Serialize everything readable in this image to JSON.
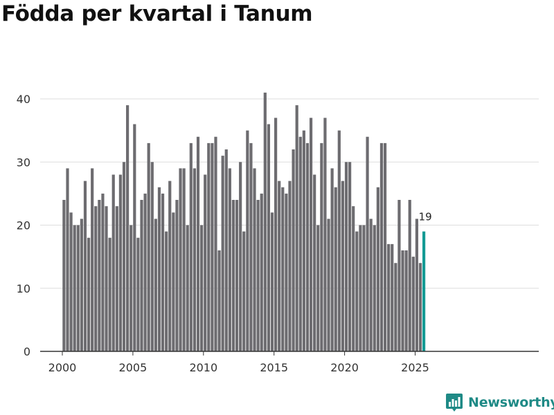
{
  "title": "Födda per kvartal i Tanum",
  "brand": {
    "name": "Newsworthy",
    "icon": "newsworthy-chart-logo-icon",
    "color": "#1f8a86"
  },
  "colors": {
    "bar": "#6d6c70",
    "highlight": "#139a94",
    "grid": "#dddddd",
    "axis": "#333333",
    "text": "#333333"
  },
  "chart_data": {
    "type": "bar",
    "title": "Födda per kvartal i Tanum",
    "xlabel": "",
    "ylabel": "",
    "ylim": [
      0,
      40
    ],
    "yticks": [
      0,
      10,
      20,
      30,
      40
    ],
    "xticks": [
      "2000",
      "2005",
      "2010",
      "2015",
      "2020",
      "2025"
    ],
    "grid": true,
    "legend": "none",
    "start_period": "2000 Q1",
    "end_period": "2025 Q3",
    "values": [
      24,
      29,
      22,
      20,
      20,
      21,
      27,
      18,
      29,
      23,
      24,
      25,
      23,
      18,
      28,
      23,
      28,
      30,
      39,
      20,
      36,
      18,
      24,
      25,
      33,
      30,
      21,
      26,
      25,
      19,
      27,
      22,
      24,
      29,
      29,
      20,
      33,
      29,
      34,
      20,
      28,
      33,
      33,
      34,
      16,
      31,
      32,
      29,
      24,
      24,
      30,
      19,
      35,
      33,
      29,
      24,
      25,
      41,
      36,
      22,
      37,
      27,
      26,
      25,
      27,
      32,
      39,
      34,
      35,
      33,
      37,
      28,
      20,
      33,
      37,
      21,
      29,
      26,
      35,
      27,
      30,
      30,
      23,
      19,
      20,
      20,
      34,
      21,
      20,
      26,
      33,
      33,
      17,
      17,
      14,
      24,
      16,
      16,
      24,
      15,
      21,
      14,
      19
    ],
    "highlight": {
      "label": "19",
      "value": 19,
      "period": "2025 Q3"
    }
  }
}
